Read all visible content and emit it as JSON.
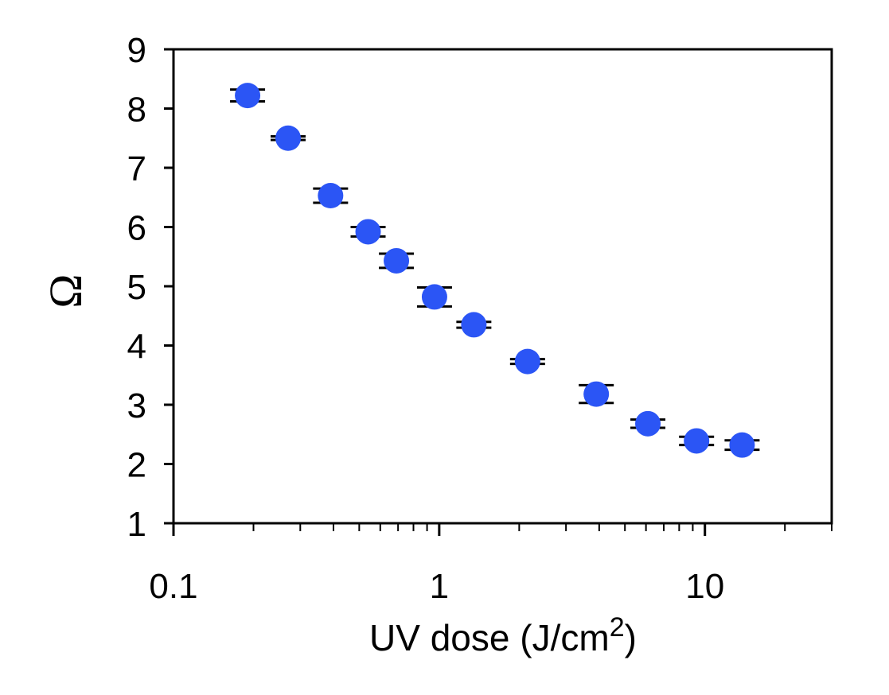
{
  "chart_data": {
    "type": "scatter",
    "title": "",
    "xlabel": {
      "main": "UV dose (J/cm",
      "superscript": "2",
      "closing": ")"
    },
    "ylabel": "Ω",
    "xscale": "log",
    "xlim": [
      0.1,
      30
    ],
    "ylim": [
      1,
      9
    ],
    "grid": false,
    "legend": "none",
    "marker_color": "#2b55f5",
    "error_bar_color": "#000000",
    "x_tick_labels": [
      {
        "value": 0.1,
        "label": "0.1"
      },
      {
        "value": 1,
        "label": "1"
      },
      {
        "value": 10,
        "label": "10"
      }
    ],
    "y_tick_labels": [
      {
        "value": 1,
        "label": "1"
      },
      {
        "value": 2,
        "label": "2"
      },
      {
        "value": 3,
        "label": "3"
      },
      {
        "value": 4,
        "label": "4"
      },
      {
        "value": 5,
        "label": "5"
      },
      {
        "value": 6,
        "label": "6"
      },
      {
        "value": 7,
        "label": "7"
      },
      {
        "value": 8,
        "label": "8"
      },
      {
        "value": 9,
        "label": "9"
      }
    ],
    "series": [
      {
        "points": [
          {
            "x": 0.19,
            "y": 8.22,
            "err": 0.1
          },
          {
            "x": 0.27,
            "y": 7.5,
            "err": 0.03
          },
          {
            "x": 0.39,
            "y": 6.53,
            "err": 0.12
          },
          {
            "x": 0.54,
            "y": 5.92,
            "err": 0.08
          },
          {
            "x": 0.69,
            "y": 5.43,
            "err": 0.12
          },
          {
            "x": 0.96,
            "y": 4.82,
            "err": 0.16
          },
          {
            "x": 1.35,
            "y": 4.35,
            "err": 0.05
          },
          {
            "x": 2.15,
            "y": 3.73,
            "err": 0.04
          },
          {
            "x": 3.9,
            "y": 3.18,
            "err": 0.15
          },
          {
            "x": 6.1,
            "y": 2.68,
            "err": 0.07
          },
          {
            "x": 9.3,
            "y": 2.39,
            "err": 0.07
          },
          {
            "x": 13.8,
            "y": 2.32,
            "err": 0.08
          }
        ]
      }
    ]
  }
}
